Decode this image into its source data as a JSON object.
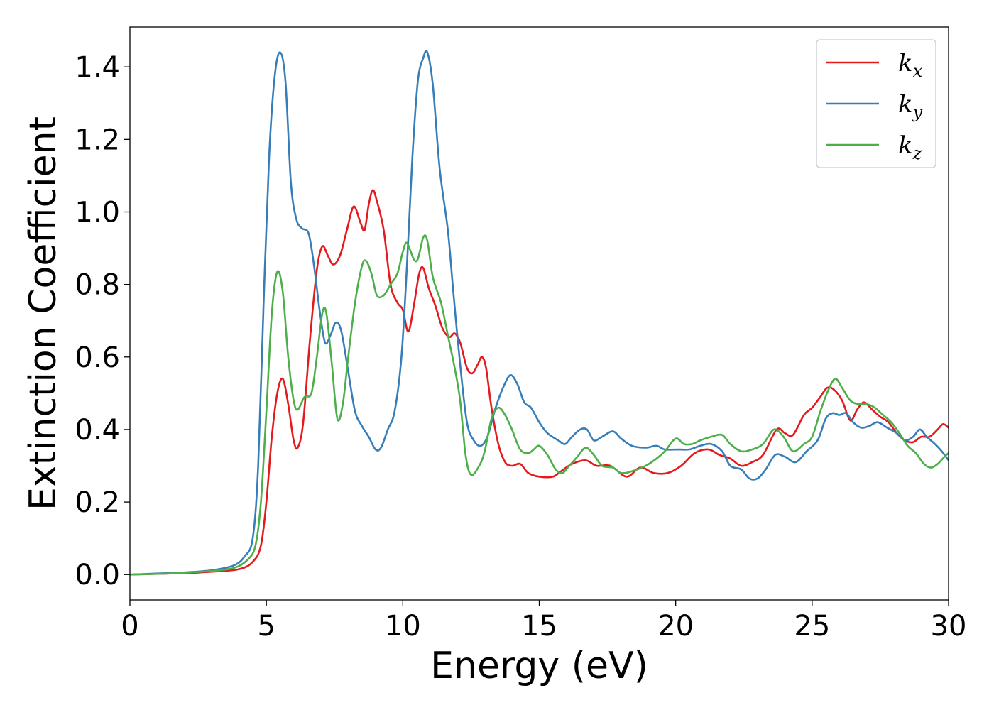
{
  "chart_data": {
    "type": "line",
    "xlabel": "Energy (eV)",
    "ylabel": "Extinction Coefficient",
    "xlim": [
      0,
      30
    ],
    "ylim": [
      -0.07,
      1.51
    ],
    "xticks": [
      0,
      5,
      10,
      15,
      20,
      25,
      30
    ],
    "yticks": [
      0.0,
      0.2,
      0.4,
      0.6,
      0.8,
      1.0,
      1.2,
      1.4
    ],
    "xtick_labels": [
      "0",
      "5",
      "10",
      "15",
      "20",
      "25",
      "30"
    ],
    "ytick_labels": [
      "0.0",
      "0.2",
      "0.4",
      "0.6",
      "0.8",
      "1.0",
      "1.2",
      "1.4"
    ],
    "grid": false,
    "legend_position": "top-right",
    "series": [
      {
        "name": "k_x",
        "label_main": "k",
        "label_sub": "x",
        "color": "#e41a1c",
        "points": [
          [
            0,
            0.0
          ],
          [
            1,
            0.002
          ],
          [
            2,
            0.004
          ],
          [
            3,
            0.008
          ],
          [
            4,
            0.015
          ],
          [
            4.5,
            0.035
          ],
          [
            4.8,
            0.08
          ],
          [
            5.0,
            0.2
          ],
          [
            5.2,
            0.38
          ],
          [
            5.4,
            0.5
          ],
          [
            5.6,
            0.54
          ],
          [
            5.8,
            0.47
          ],
          [
            6.0,
            0.37
          ],
          [
            6.15,
            0.35
          ],
          [
            6.35,
            0.42
          ],
          [
            6.6,
            0.65
          ],
          [
            6.85,
            0.84
          ],
          [
            7.05,
            0.905
          ],
          [
            7.25,
            0.88
          ],
          [
            7.45,
            0.855
          ],
          [
            7.7,
            0.88
          ],
          [
            7.95,
            0.95
          ],
          [
            8.2,
            1.015
          ],
          [
            8.45,
            0.97
          ],
          [
            8.6,
            0.95
          ],
          [
            8.75,
            1.02
          ],
          [
            8.9,
            1.06
          ],
          [
            9.05,
            1.03
          ],
          [
            9.3,
            0.95
          ],
          [
            9.55,
            0.8
          ],
          [
            9.8,
            0.75
          ],
          [
            10.0,
            0.73
          ],
          [
            10.2,
            0.67
          ],
          [
            10.4,
            0.74
          ],
          [
            10.6,
            0.83
          ],
          [
            10.75,
            0.845
          ],
          [
            10.95,
            0.79
          ],
          [
            11.2,
            0.74
          ],
          [
            11.45,
            0.68
          ],
          [
            11.7,
            0.655
          ],
          [
            11.9,
            0.665
          ],
          [
            12.1,
            0.64
          ],
          [
            12.35,
            0.57
          ],
          [
            12.55,
            0.555
          ],
          [
            12.75,
            0.58
          ],
          [
            12.9,
            0.6
          ],
          [
            13.05,
            0.57
          ],
          [
            13.25,
            0.46
          ],
          [
            13.5,
            0.36
          ],
          [
            13.75,
            0.31
          ],
          [
            14.0,
            0.3
          ],
          [
            14.3,
            0.305
          ],
          [
            14.6,
            0.28
          ],
          [
            15.0,
            0.27
          ],
          [
            15.5,
            0.27
          ],
          [
            15.8,
            0.285
          ],
          [
            16.2,
            0.305
          ],
          [
            16.7,
            0.315
          ],
          [
            17.1,
            0.3
          ],
          [
            17.6,
            0.3
          ],
          [
            18.2,
            0.27
          ],
          [
            18.7,
            0.295
          ],
          [
            19.2,
            0.28
          ],
          [
            19.7,
            0.28
          ],
          [
            20.2,
            0.3
          ],
          [
            20.7,
            0.335
          ],
          [
            21.2,
            0.345
          ],
          [
            21.6,
            0.33
          ],
          [
            22.0,
            0.32
          ],
          [
            22.4,
            0.3
          ],
          [
            22.8,
            0.31
          ],
          [
            23.2,
            0.33
          ],
          [
            23.7,
            0.4
          ],
          [
            24.0,
            0.39
          ],
          [
            24.3,
            0.385
          ],
          [
            24.7,
            0.44
          ],
          [
            25.0,
            0.46
          ],
          [
            25.3,
            0.49
          ],
          [
            25.55,
            0.515
          ],
          [
            25.8,
            0.51
          ],
          [
            26.1,
            0.48
          ],
          [
            26.4,
            0.425
          ],
          [
            26.65,
            0.455
          ],
          [
            26.9,
            0.475
          ],
          [
            27.2,
            0.455
          ],
          [
            27.5,
            0.435
          ],
          [
            27.8,
            0.42
          ],
          [
            28.1,
            0.39
          ],
          [
            28.4,
            0.37
          ],
          [
            28.7,
            0.365
          ],
          [
            29.0,
            0.38
          ],
          [
            29.3,
            0.38
          ],
          [
            29.6,
            0.4
          ],
          [
            29.8,
            0.415
          ],
          [
            30.0,
            0.405
          ]
        ]
      },
      {
        "name": "k_y",
        "label_main": "k",
        "label_sub": "y",
        "color": "#377eb8",
        "points": [
          [
            0,
            0.0
          ],
          [
            1,
            0.003
          ],
          [
            2,
            0.006
          ],
          [
            3,
            0.012
          ],
          [
            3.8,
            0.025
          ],
          [
            4.2,
            0.05
          ],
          [
            4.5,
            0.1
          ],
          [
            4.7,
            0.3
          ],
          [
            4.9,
            0.75
          ],
          [
            5.1,
            1.15
          ],
          [
            5.3,
            1.37
          ],
          [
            5.5,
            1.44
          ],
          [
            5.7,
            1.36
          ],
          [
            5.9,
            1.08
          ],
          [
            6.1,
            0.98
          ],
          [
            6.3,
            0.955
          ],
          [
            6.55,
            0.94
          ],
          [
            6.75,
            0.85
          ],
          [
            6.95,
            0.73
          ],
          [
            7.15,
            0.64
          ],
          [
            7.35,
            0.66
          ],
          [
            7.55,
            0.695
          ],
          [
            7.75,
            0.67
          ],
          [
            8.0,
            0.56
          ],
          [
            8.25,
            0.45
          ],
          [
            8.5,
            0.41
          ],
          [
            8.75,
            0.38
          ],
          [
            9.0,
            0.345
          ],
          [
            9.2,
            0.35
          ],
          [
            9.45,
            0.4
          ],
          [
            9.7,
            0.45
          ],
          [
            9.95,
            0.6
          ],
          [
            10.15,
            0.85
          ],
          [
            10.35,
            1.15
          ],
          [
            10.55,
            1.36
          ],
          [
            10.75,
            1.425
          ],
          [
            10.9,
            1.44
          ],
          [
            11.1,
            1.35
          ],
          [
            11.35,
            1.12
          ],
          [
            11.65,
            0.95
          ],
          [
            11.85,
            0.78
          ],
          [
            12.1,
            0.58
          ],
          [
            12.35,
            0.42
          ],
          [
            12.6,
            0.37
          ],
          [
            12.85,
            0.355
          ],
          [
            13.1,
            0.38
          ],
          [
            13.4,
            0.46
          ],
          [
            13.7,
            0.52
          ],
          [
            13.95,
            0.55
          ],
          [
            14.2,
            0.525
          ],
          [
            14.45,
            0.475
          ],
          [
            14.7,
            0.46
          ],
          [
            15.0,
            0.42
          ],
          [
            15.3,
            0.39
          ],
          [
            15.7,
            0.37
          ],
          [
            15.95,
            0.36
          ],
          [
            16.2,
            0.38
          ],
          [
            16.5,
            0.4
          ],
          [
            16.75,
            0.4
          ],
          [
            17.0,
            0.37
          ],
          [
            17.3,
            0.38
          ],
          [
            17.7,
            0.395
          ],
          [
            18.0,
            0.375
          ],
          [
            18.4,
            0.355
          ],
          [
            18.9,
            0.35
          ],
          [
            19.3,
            0.355
          ],
          [
            19.6,
            0.345
          ],
          [
            20.1,
            0.345
          ],
          [
            20.5,
            0.345
          ],
          [
            20.9,
            0.355
          ],
          [
            21.3,
            0.36
          ],
          [
            21.7,
            0.34
          ],
          [
            22.0,
            0.3
          ],
          [
            22.4,
            0.29
          ],
          [
            22.7,
            0.265
          ],
          [
            23.0,
            0.265
          ],
          [
            23.3,
            0.29
          ],
          [
            23.65,
            0.33
          ],
          [
            24.0,
            0.325
          ],
          [
            24.4,
            0.31
          ],
          [
            24.8,
            0.34
          ],
          [
            25.2,
            0.37
          ],
          [
            25.5,
            0.43
          ],
          [
            25.75,
            0.445
          ],
          [
            26.0,
            0.44
          ],
          [
            26.25,
            0.445
          ],
          [
            26.5,
            0.42
          ],
          [
            26.8,
            0.405
          ],
          [
            27.1,
            0.41
          ],
          [
            27.4,
            0.42
          ],
          [
            27.75,
            0.405
          ],
          [
            28.1,
            0.39
          ],
          [
            28.4,
            0.37
          ],
          [
            28.7,
            0.38
          ],
          [
            28.95,
            0.4
          ],
          [
            29.2,
            0.38
          ],
          [
            29.5,
            0.36
          ],
          [
            29.75,
            0.34
          ],
          [
            30.0,
            0.315
          ]
        ]
      },
      {
        "name": "k_z",
        "label_main": "k",
        "label_sub": "z",
        "color": "#4daf4a",
        "points": [
          [
            0,
            0.0
          ],
          [
            1,
            0.002
          ],
          [
            2,
            0.005
          ],
          [
            3,
            0.01
          ],
          [
            3.8,
            0.018
          ],
          [
            4.3,
            0.04
          ],
          [
            4.6,
            0.08
          ],
          [
            4.8,
            0.2
          ],
          [
            5.0,
            0.45
          ],
          [
            5.2,
            0.72
          ],
          [
            5.4,
            0.835
          ],
          [
            5.6,
            0.78
          ],
          [
            5.8,
            0.6
          ],
          [
            6.0,
            0.48
          ],
          [
            6.15,
            0.455
          ],
          [
            6.4,
            0.49
          ],
          [
            6.65,
            0.5
          ],
          [
            6.85,
            0.6
          ],
          [
            7.05,
            0.72
          ],
          [
            7.2,
            0.72
          ],
          [
            7.4,
            0.58
          ],
          [
            7.6,
            0.43
          ],
          [
            7.8,
            0.47
          ],
          [
            8.0,
            0.6
          ],
          [
            8.25,
            0.75
          ],
          [
            8.5,
            0.85
          ],
          [
            8.65,
            0.865
          ],
          [
            8.85,
            0.83
          ],
          [
            9.05,
            0.77
          ],
          [
            9.3,
            0.77
          ],
          [
            9.55,
            0.8
          ],
          [
            9.8,
            0.83
          ],
          [
            10.0,
            0.89
          ],
          [
            10.15,
            0.915
          ],
          [
            10.4,
            0.87
          ],
          [
            10.55,
            0.87
          ],
          [
            10.75,
            0.93
          ],
          [
            10.9,
            0.92
          ],
          [
            11.1,
            0.82
          ],
          [
            11.4,
            0.75
          ],
          [
            11.65,
            0.66
          ],
          [
            11.9,
            0.57
          ],
          [
            12.1,
            0.48
          ],
          [
            12.3,
            0.33
          ],
          [
            12.5,
            0.275
          ],
          [
            12.8,
            0.3
          ],
          [
            13.0,
            0.34
          ],
          [
            13.25,
            0.43
          ],
          [
            13.5,
            0.46
          ],
          [
            13.75,
            0.44
          ],
          [
            14.0,
            0.4
          ],
          [
            14.3,
            0.345
          ],
          [
            14.6,
            0.335
          ],
          [
            14.8,
            0.345
          ],
          [
            15.0,
            0.355
          ],
          [
            15.3,
            0.33
          ],
          [
            15.6,
            0.29
          ],
          [
            15.85,
            0.28
          ],
          [
            16.1,
            0.3
          ],
          [
            16.4,
            0.325
          ],
          [
            16.7,
            0.35
          ],
          [
            17.0,
            0.33
          ],
          [
            17.3,
            0.3
          ],
          [
            17.7,
            0.295
          ],
          [
            18.0,
            0.28
          ],
          [
            18.4,
            0.285
          ],
          [
            18.9,
            0.3
          ],
          [
            19.3,
            0.32
          ],
          [
            19.6,
            0.34
          ],
          [
            20.0,
            0.375
          ],
          [
            20.3,
            0.36
          ],
          [
            20.6,
            0.36
          ],
          [
            20.9,
            0.37
          ],
          [
            21.3,
            0.38
          ],
          [
            21.7,
            0.385
          ],
          [
            22.0,
            0.36
          ],
          [
            22.4,
            0.34
          ],
          [
            22.8,
            0.345
          ],
          [
            23.2,
            0.36
          ],
          [
            23.6,
            0.4
          ],
          [
            23.95,
            0.38
          ],
          [
            24.3,
            0.34
          ],
          [
            24.7,
            0.36
          ],
          [
            25.0,
            0.38
          ],
          [
            25.3,
            0.45
          ],
          [
            25.6,
            0.51
          ],
          [
            25.85,
            0.54
          ],
          [
            26.1,
            0.515
          ],
          [
            26.4,
            0.48
          ],
          [
            26.7,
            0.47
          ],
          [
            27.0,
            0.47
          ],
          [
            27.3,
            0.46
          ],
          [
            27.6,
            0.44
          ],
          [
            27.9,
            0.42
          ],
          [
            28.2,
            0.39
          ],
          [
            28.5,
            0.355
          ],
          [
            28.8,
            0.335
          ],
          [
            29.1,
            0.305
          ],
          [
            29.35,
            0.295
          ],
          [
            29.6,
            0.305
          ],
          [
            29.85,
            0.325
          ],
          [
            30.0,
            0.335
          ]
        ]
      }
    ]
  }
}
